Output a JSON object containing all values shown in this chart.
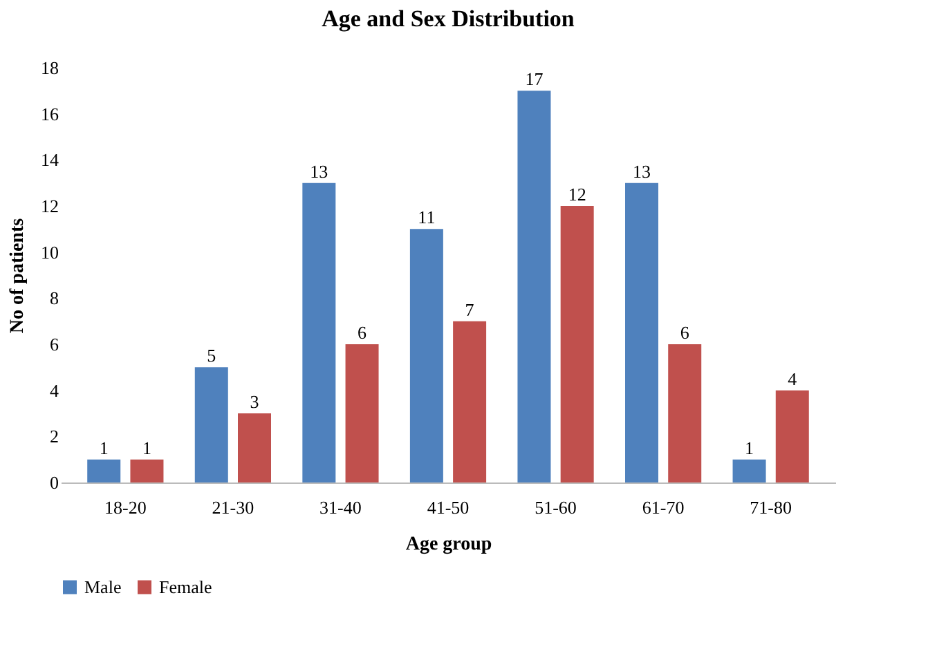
{
  "chart_data": {
    "type": "bar",
    "title": "Age and Sex Distribution",
    "xlabel": "Age group",
    "ylabel": "No of patients",
    "categories": [
      "18-20",
      "21-30",
      "31-40",
      "41-50",
      "51-60",
      "61-70",
      "71-80"
    ],
    "series": [
      {
        "name": "Male",
        "color": "#4f81bd",
        "values": [
          1,
          5,
          13,
          11,
          17,
          13,
          1
        ]
      },
      {
        "name": "Female",
        "color": "#c0504d",
        "values": [
          1,
          3,
          6,
          7,
          12,
          6,
          4
        ]
      }
    ],
    "ylim": [
      0,
      18
    ],
    "yticks": [
      0,
      2,
      4,
      6,
      8,
      10,
      12,
      14,
      16,
      18
    ],
    "grid": false,
    "legend": "bottom",
    "data_labels": true
  }
}
